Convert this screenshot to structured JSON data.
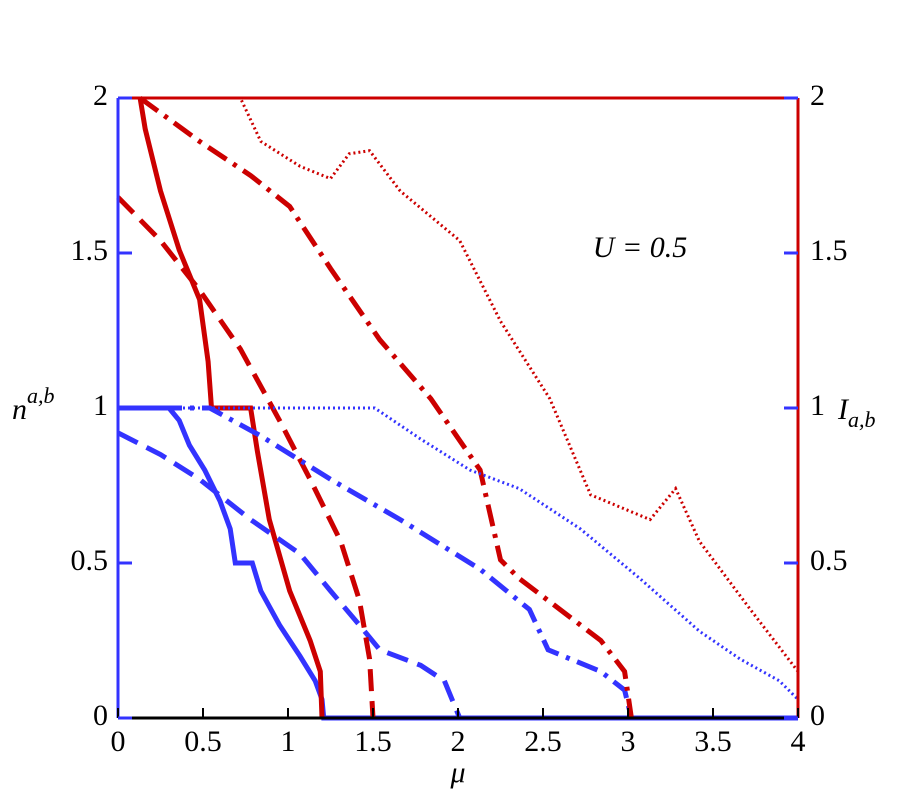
{
  "chart_data": {
    "type": "line",
    "x_label": "μ",
    "y_label": {
      "main": "n",
      "sup": "a,b"
    },
    "y2_label": {
      "main": "I",
      "sub": "a,b"
    },
    "annotation": "U = 0.5",
    "xlim": [
      0,
      4
    ],
    "xticks": [
      0,
      0.5,
      1,
      1.5,
      2,
      2.5,
      3,
      3.5,
      4
    ],
    "ylim": [
      0,
      2
    ],
    "yticks": [
      0,
      0.5,
      1,
      1.5,
      2
    ],
    "y2lim": [
      0,
      2
    ],
    "y2ticks": [
      0,
      0.5,
      1,
      1.5,
      2
    ],
    "left_axis_color": "#3333ff",
    "right_axis_color": "#cc0000",
    "series": [
      {
        "color": "#3333ff",
        "style": "solid",
        "width": 5,
        "x": [
          0,
          0.3,
          0.36,
          0.42,
          0.51,
          0.6,
          0.66,
          0.69,
          0.79,
          0.84,
          0.95,
          1.07,
          1.16,
          1.2,
          1.21,
          4
        ],
        "values": [
          1,
          1,
          0.96,
          0.88,
          0.8,
          0.7,
          0.61,
          0.5,
          0.5,
          0.41,
          0.3,
          0.2,
          0.12,
          0.06,
          0,
          0
        ]
      },
      {
        "color": "#cc0000",
        "style": "solid",
        "width": 5,
        "axis": "y2",
        "x": [
          0.13,
          0.16,
          0.25,
          0.36,
          0.48,
          0.53,
          0.55,
          0.78,
          0.82,
          0.89,
          1.01,
          1.13,
          1.19,
          1.2
        ],
        "values": [
          2,
          1.9,
          1.7,
          1.51,
          1.35,
          1.15,
          1,
          1,
          0.86,
          0.64,
          0.41,
          0.25,
          0.15,
          0
        ]
      },
      {
        "color": "#3333ff",
        "style": "dashed",
        "width": 5,
        "x": [
          0,
          0.25,
          0.48,
          0.78,
          1.07,
          1.25,
          1.42,
          1.54,
          1.78,
          1.92,
          2.01
        ],
        "values": [
          0.92,
          0.85,
          0.77,
          0.64,
          0.53,
          0.41,
          0.3,
          0.22,
          0.17,
          0.12,
          0
        ]
      },
      {
        "color": "#cc0000",
        "style": "dashed",
        "width": 5,
        "axis": "y2",
        "x": [
          0,
          0.25,
          0.48,
          0.72,
          0.95,
          1.13,
          1.31,
          1.42,
          1.48,
          1.5
        ],
        "values": [
          1.68,
          1.54,
          1.38,
          1.19,
          0.96,
          0.77,
          0.57,
          0.38,
          0.19,
          0
        ]
      },
      {
        "color": "#3333ff",
        "style": "dashdot",
        "width": 5,
        "x": [
          0,
          0.54,
          0.84,
          1.25,
          1.66,
          2.13,
          2.42,
          2.53,
          2.84,
          2.98,
          3.02
        ],
        "values": [
          1,
          1,
          0.91,
          0.77,
          0.64,
          0.48,
          0.35,
          0.22,
          0.15,
          0.09,
          0
        ]
      },
      {
        "color": "#cc0000",
        "style": "dashdot",
        "width": 5,
        "axis": "y2",
        "x": [
          0.13,
          0.48,
          0.78,
          1.01,
          1.25,
          1.54,
          1.84,
          2.13,
          2.25,
          2.36,
          2.6,
          2.84,
          2.98,
          3.02
        ],
        "values": [
          2,
          1.86,
          1.75,
          1.65,
          1.45,
          1.22,
          1.03,
          0.8,
          0.51,
          0.45,
          0.35,
          0.25,
          0.15,
          0
        ]
      },
      {
        "color": "#3333ff",
        "style": "dotted",
        "width": 3,
        "x": [
          0,
          1.51,
          1.78,
          2.07,
          2.36,
          2.72,
          3.07,
          3.42,
          3.66,
          3.89,
          4
        ],
        "values": [
          1,
          1,
          0.9,
          0.8,
          0.74,
          0.61,
          0.45,
          0.28,
          0.19,
          0.12,
          0.06
        ]
      },
      {
        "color": "#cc0000",
        "style": "dotted",
        "width": 3,
        "axis": "y2",
        "x": [
          0,
          0.72,
          0.84,
          1.07,
          1.25,
          1.36,
          1.48,
          1.66,
          2.01,
          2.25,
          2.54,
          2.78,
          3.13,
          3.28,
          3.42,
          3.72,
          4
        ],
        "values": [
          2,
          2,
          1.86,
          1.78,
          1.74,
          1.82,
          1.83,
          1.7,
          1.54,
          1.28,
          1.03,
          0.72,
          0.64,
          0.74,
          0.57,
          0.35,
          0.15
        ]
      }
    ]
  }
}
